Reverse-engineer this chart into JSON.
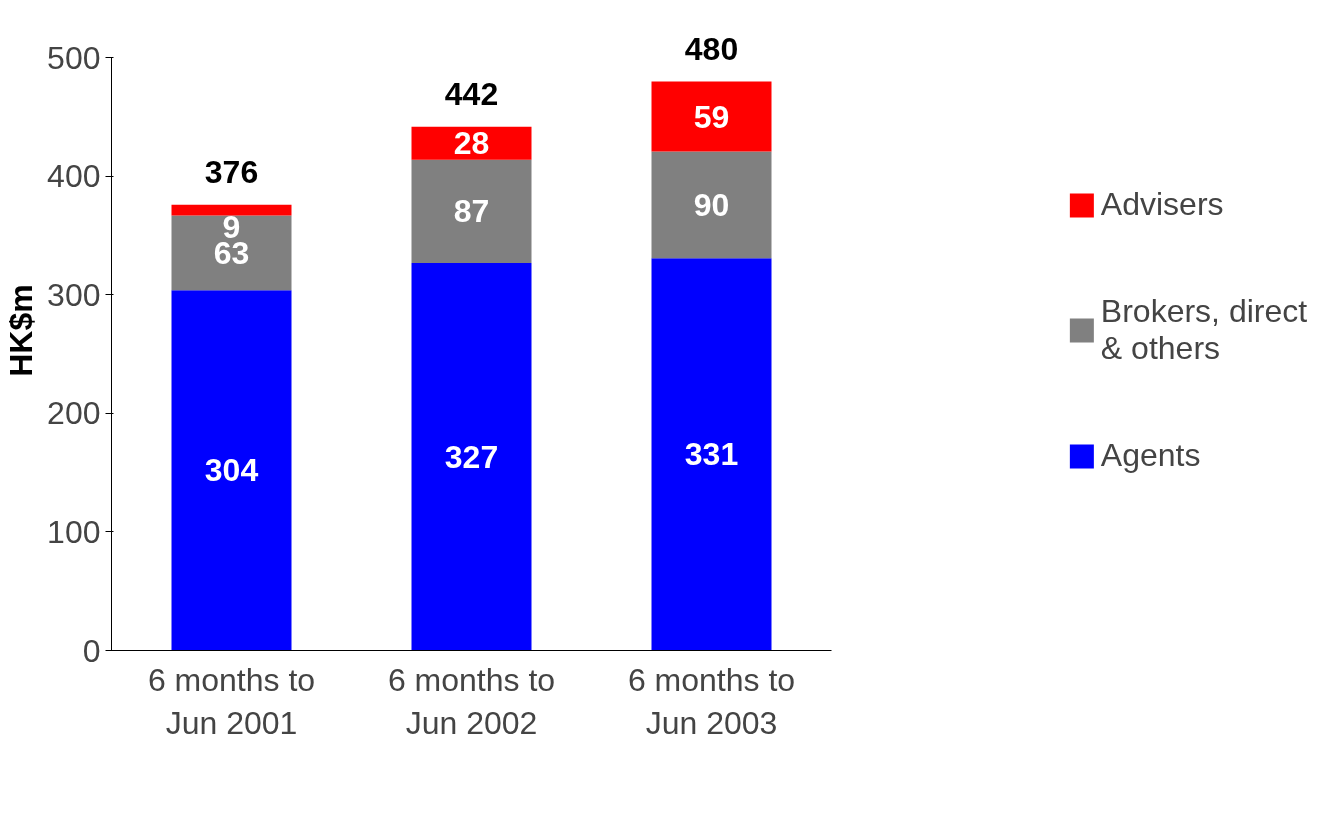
{
  "chart_data": {
    "type": "bar",
    "stacked": true,
    "ylabel": "HK$m",
    "categories": [
      "6 months to\nJun 2001",
      "6 months to\nJun 2002",
      "6 months to\nJun 2003"
    ],
    "series": [
      {
        "name": "Agents",
        "color": "#0000ff",
        "values": [
          304,
          327,
          331
        ]
      },
      {
        "name": "Brokers, direct\n& others",
        "color": "#808080",
        "values": [
          63,
          87,
          90
        ]
      },
      {
        "name": "Advisers",
        "color": "#ff0000",
        "values": [
          9,
          28,
          59
        ]
      }
    ],
    "ylim": [
      0,
      500
    ],
    "yticks": [
      0,
      100,
      200,
      300,
      400,
      500
    ],
    "data_labels": true,
    "totals": [
      "376",
      "442",
      "480"
    ],
    "grid": false,
    "legend": "right"
  }
}
